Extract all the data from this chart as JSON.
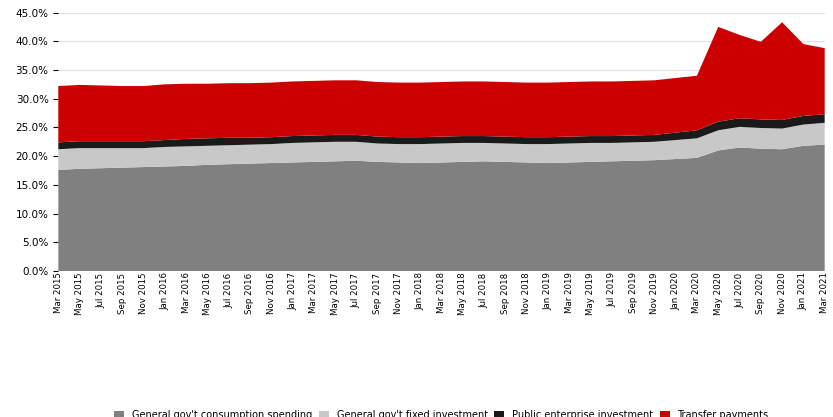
{
  "colors": {
    "consumption": "#808080",
    "fixed_investment": "#c8c8c8",
    "public_enterprise": "#1a1a1a",
    "transfer": "#cc0000"
  },
  "legend_labels": [
    "General gov't consumption spending",
    "General gov't fixed investment",
    "Public enterprise investment",
    "Transfer payments"
  ],
  "ylim": [
    0,
    0.45
  ],
  "yticks": [
    0.0,
    0.05,
    0.1,
    0.15,
    0.2,
    0.25,
    0.3,
    0.35,
    0.4,
    0.45
  ],
  "dates": [
    "Mar 2015",
    "May 2015",
    "Jul 2015",
    "Sep 2015",
    "Nov 2015",
    "Jan 2016",
    "Mar 2016",
    "May 2016",
    "Jul 2016",
    "Sep 2016",
    "Nov 2016",
    "Jan 2017",
    "Mar 2017",
    "May 2017",
    "Jul 2017",
    "Sep 2017",
    "Nov 2017",
    "Jan 2018",
    "Mar 2018",
    "May 2018",
    "Jul 2018",
    "Sep 2018",
    "Nov 2018",
    "Jan 2019",
    "Mar 2019",
    "May 2019",
    "Jul 2019",
    "Sep 2019",
    "Nov 2019",
    "Jan 2020",
    "Mar 2020",
    "May 2020",
    "Jul 2020",
    "Sep 2020",
    "Nov 2020",
    "Jan 2021",
    "Mar 2021"
  ],
  "consumption": [
    0.176,
    0.178,
    0.179,
    0.18,
    0.181,
    0.182,
    0.183,
    0.185,
    0.186,
    0.187,
    0.188,
    0.189,
    0.19,
    0.191,
    0.192,
    0.19,
    0.189,
    0.188,
    0.189,
    0.19,
    0.191,
    0.19,
    0.189,
    0.188,
    0.189,
    0.19,
    0.191,
    0.192,
    0.193,
    0.195,
    0.197,
    0.21,
    0.215,
    0.213,
    0.212,
    0.218,
    0.22
  ],
  "fixed_investment": [
    0.036,
    0.036,
    0.035,
    0.034,
    0.033,
    0.034,
    0.034,
    0.033,
    0.033,
    0.033,
    0.033,
    0.034,
    0.034,
    0.034,
    0.033,
    0.032,
    0.032,
    0.033,
    0.033,
    0.033,
    0.032,
    0.032,
    0.032,
    0.033,
    0.033,
    0.033,
    0.032,
    0.032,
    0.032,
    0.033,
    0.034,
    0.035,
    0.036,
    0.036,
    0.036,
    0.037,
    0.038
  ],
  "public_enterprise": [
    0.012,
    0.012,
    0.012,
    0.012,
    0.012,
    0.012,
    0.013,
    0.013,
    0.013,
    0.012,
    0.012,
    0.012,
    0.012,
    0.012,
    0.012,
    0.012,
    0.012,
    0.012,
    0.012,
    0.012,
    0.012,
    0.012,
    0.012,
    0.012,
    0.012,
    0.012,
    0.012,
    0.012,
    0.012,
    0.013,
    0.014,
    0.015,
    0.015,
    0.015,
    0.015,
    0.015,
    0.015
  ],
  "transfer": [
    0.098,
    0.098,
    0.097,
    0.096,
    0.096,
    0.097,
    0.096,
    0.095,
    0.095,
    0.095,
    0.095,
    0.095,
    0.095,
    0.095,
    0.095,
    0.095,
    0.095,
    0.095,
    0.095,
    0.095,
    0.095,
    0.095,
    0.095,
    0.095,
    0.095,
    0.095,
    0.095,
    0.095,
    0.095,
    0.095,
    0.095,
    0.165,
    0.145,
    0.135,
    0.17,
    0.125,
    0.115
  ],
  "background_color": "#ffffff",
  "grid_color": "#e0e0e0"
}
